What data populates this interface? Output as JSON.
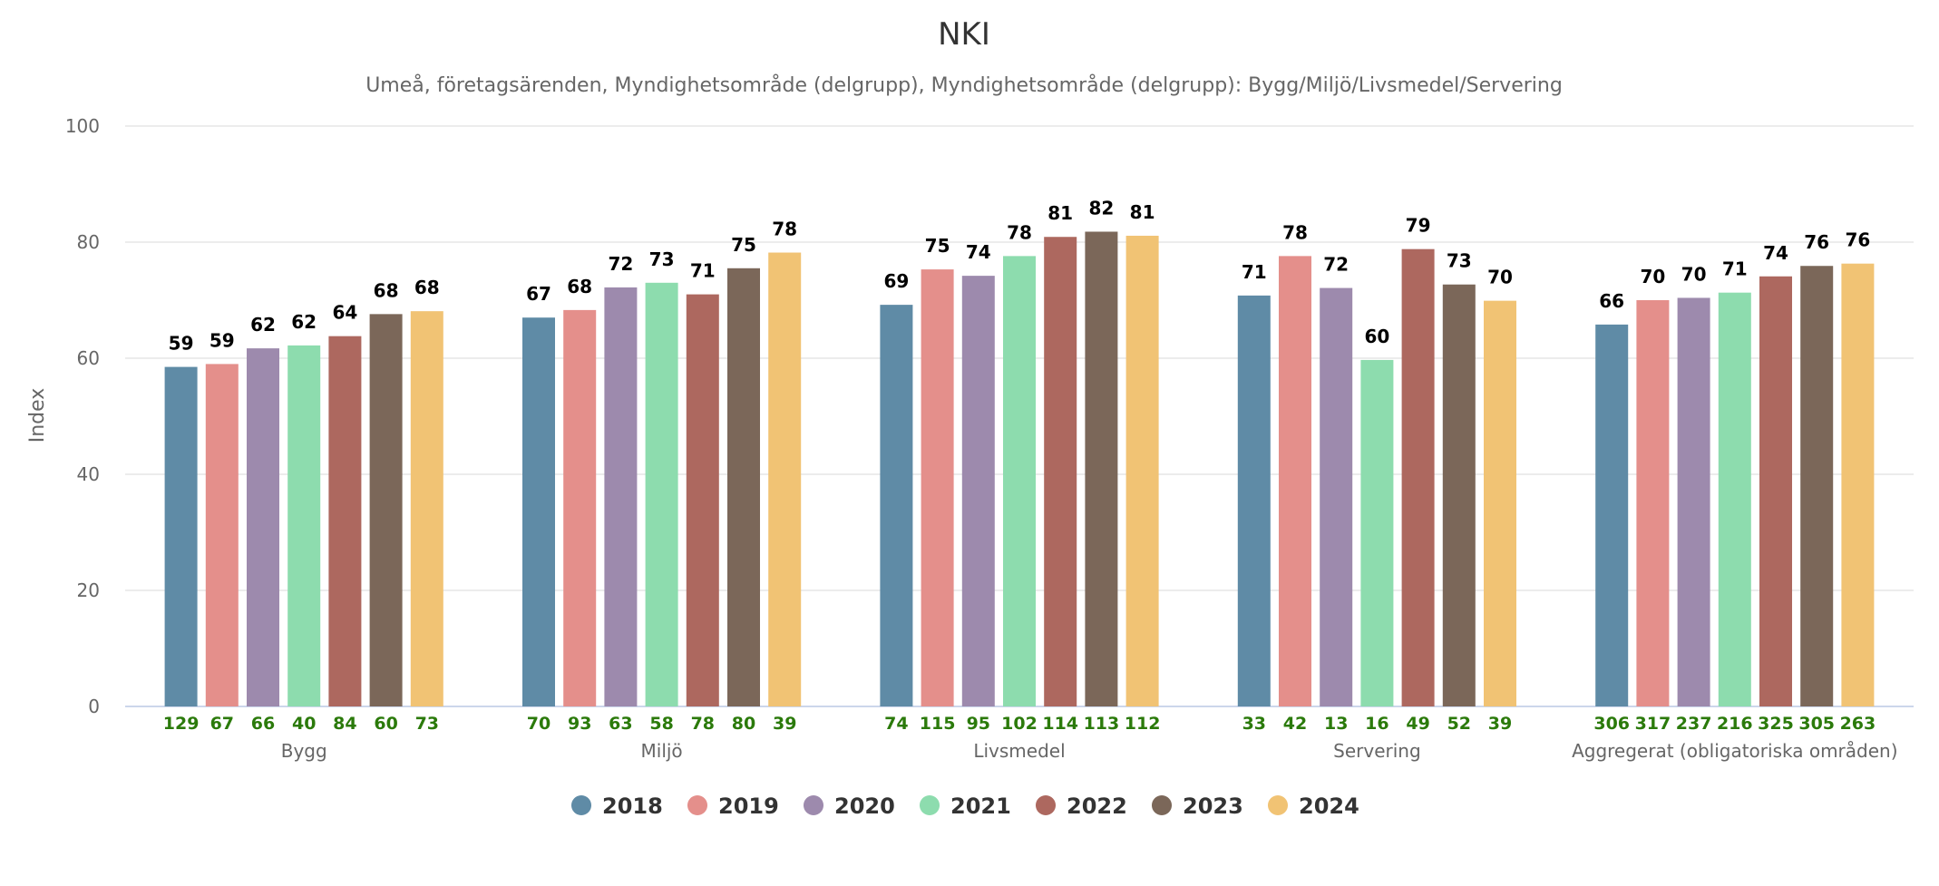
{
  "chart_data": {
    "type": "bar",
    "title": "NKI",
    "subtitle": "Umeå, företagsärenden, Myndighetsområde (delgrupp), Myndighetsområde (delgrupp): Bygg/Miljö/Livsmedel/Servering",
    "xlabel": "",
    "ylabel": "Index",
    "ylim": [
      0,
      100
    ],
    "yticks": [
      0,
      20,
      40,
      60,
      80,
      100
    ],
    "grid": true,
    "legend_position": "bottom-center",
    "categories": [
      "Bygg",
      "Miljö",
      "Livsmedel",
      "Servering",
      "Aggregerat (obligatoriska områden)"
    ],
    "series": [
      {
        "name": "2018",
        "color": "#5f8ba6",
        "values": [
          58.5,
          67,
          69.2,
          70.8,
          65.8
        ],
        "labels": [
          "59",
          "67",
          "69",
          "71",
          "66"
        ],
        "n": [
          "129",
          "70",
          "74",
          "33",
          "306"
        ]
      },
      {
        "name": "2019",
        "color": "#e48f8b",
        "values": [
          59,
          68.3,
          75.3,
          77.6,
          70
        ],
        "labels": [
          "59",
          "68",
          "75",
          "78",
          "70"
        ],
        "n": [
          "67",
          "93",
          "115",
          "42",
          "317"
        ]
      },
      {
        "name": "2020",
        "color": "#9d8aad",
        "values": [
          61.7,
          72.2,
          74.2,
          72.1,
          70.4
        ],
        "labels": [
          "62",
          "72",
          "74",
          "72",
          "70"
        ],
        "n": [
          "66",
          "63",
          "95",
          "13",
          "237"
        ]
      },
      {
        "name": "2021",
        "color": "#8ddcae",
        "values": [
          62.2,
          73,
          77.6,
          59.7,
          71.3
        ],
        "labels": [
          "62",
          "73",
          "78",
          "60",
          "71"
        ],
        "n": [
          "40",
          "58",
          "102",
          "16",
          "216"
        ]
      },
      {
        "name": "2022",
        "color": "#ad685f",
        "values": [
          63.8,
          71,
          80.9,
          78.8,
          74.1
        ],
        "labels": [
          "64",
          "71",
          "81",
          "79",
          "74"
        ],
        "n": [
          "84",
          "78",
          "114",
          "49",
          "325"
        ]
      },
      {
        "name": "2023",
        "color": "#7b6759",
        "values": [
          67.6,
          75.5,
          81.8,
          72.7,
          75.9
        ],
        "labels": [
          "68",
          "75",
          "82",
          "73",
          "76"
        ],
        "n": [
          "60",
          "80",
          "113",
          "52",
          "305"
        ]
      },
      {
        "name": "2024",
        "color": "#f1c374",
        "values": [
          68.1,
          78.2,
          81.1,
          69.9,
          76.3
        ],
        "labels": [
          "68",
          "78",
          "81",
          "70",
          "76"
        ],
        "n": [
          "73",
          "39",
          "112",
          "39",
          "263"
        ]
      }
    ]
  }
}
